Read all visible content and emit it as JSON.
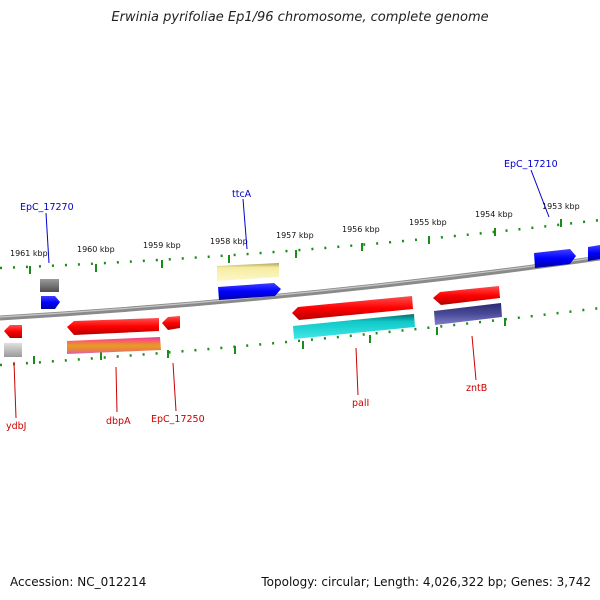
{
  "title": "Erwinia pyrifoliae Ep1/96 chromosome, complete genome",
  "accession": "Accession: NC_012214",
  "topology": "Topology: circular; Length: 4,026,322 bp; Genes: 3,742",
  "ticks": [
    "1961 kbp",
    "1960 kbp",
    "1959 kbp",
    "1958 kbp",
    "1957 kbp",
    "1956 kbp",
    "1955 kbp",
    "1954 kbp",
    "1953 kbp"
  ],
  "gene_labels": {
    "epc_17270": "EpC_17270",
    "ttca": "ttcA",
    "epc_17210": "EpC_17210",
    "ydbj": "ydbJ",
    "dbpa": "dbpA",
    "epc_17250": "EpC_17250",
    "pali": "palI",
    "zntb": "zntB"
  },
  "colors": {
    "forward_gene": "#0000ff",
    "reverse_gene": "#ff0000",
    "forward_label": "#0000cc",
    "reverse_label": "#cc0000",
    "tick": "#008000",
    "backbone": "#888888"
  }
}
